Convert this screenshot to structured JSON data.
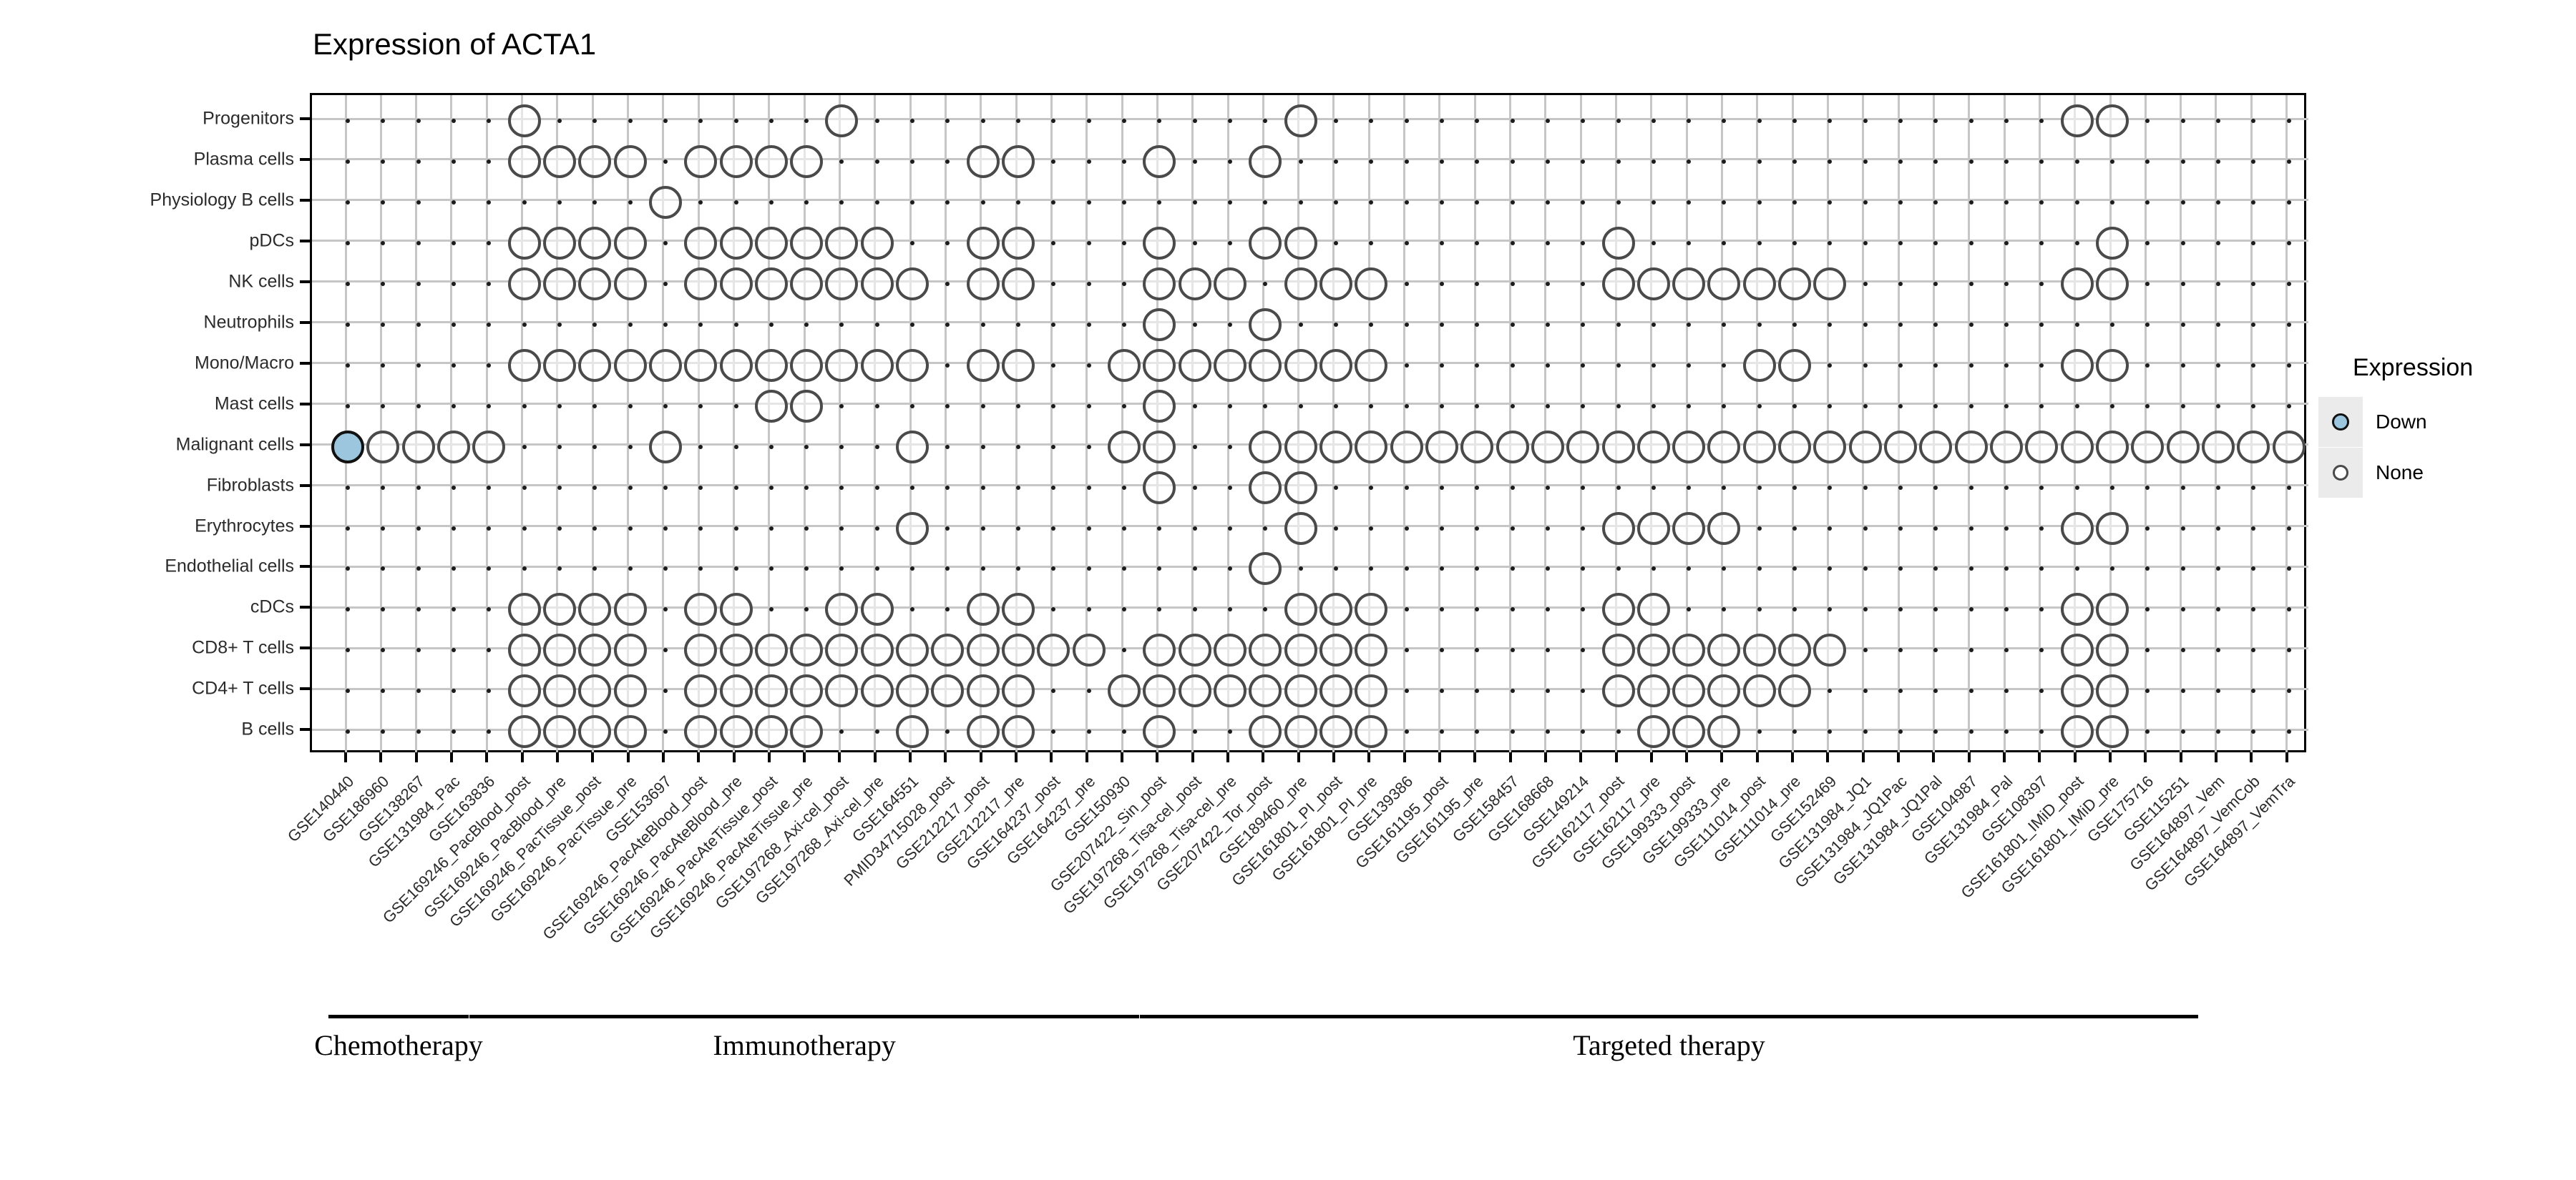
{
  "title": "Expression of ACTA1",
  "legend": {
    "title": "Expression",
    "items": [
      {
        "id": "down",
        "label": "Down"
      },
      {
        "id": "none",
        "label": "None"
      }
    ]
  },
  "groups": [
    {
      "label": "Chemotherapy",
      "from_col": 1,
      "to_col": 4
    },
    {
      "label": "Immunotherapy",
      "from_col": 5,
      "to_col": 23
    },
    {
      "label": "Targeted therapy",
      "from_col": 24,
      "to_col": 53
    }
  ],
  "chart_data": {
    "type": "scatter",
    "title": "Expression of ACTA1",
    "legend": {
      "title": "Expression",
      "entries": [
        "Down",
        "None"
      ],
      "position": "right"
    },
    "grid": true,
    "x_categories": [
      "GSE140440",
      "GSE186960",
      "GSE138267",
      "GSE131984_Pac",
      "GSE163836",
      "GSE169246_PacBlood_post",
      "GSE169246_PacBlood_pre",
      "GSE169246_PacTissue_post",
      "GSE169246_PacTissue_pre",
      "GSE153697",
      "GSE169246_PacAteBlood_post",
      "GSE169246_PacAteBlood_pre",
      "GSE169246_PacAteTissue_post",
      "GSE169246_PacAteTissue_pre",
      "GSE197268_Axi-cel_post",
      "GSE197268_Axi-cel_pre",
      "GSE164551",
      "PMID34715028_post",
      "GSE212217_post",
      "GSE212217_pre",
      "GSE164237_post",
      "GSE164237_pre",
      "GSE150930",
      "GSE207422_Sin_post",
      "GSE197268_Tisa-cel_post",
      "GSE197268_Tisa-cel_pre",
      "GSE207422_Tor_post",
      "GSE189460_pre",
      "GSE161801_PI_post",
      "GSE161801_PI_pre",
      "GSE139386",
      "GSE161195_post",
      "GSE161195_pre",
      "GSE158457",
      "GSE168668",
      "GSE149214",
      "GSE162117_post",
      "GSE162117_pre",
      "GSE199333_post",
      "GSE199333_pre",
      "GSE111014_post",
      "GSE111014_pre",
      "GSE152469",
      "GSE131984_JQ1",
      "GSE131984_JQ1Pac",
      "GSE131984_JQ1Pal",
      "GSE104987",
      "GSE131984_Pal",
      "GSE108397",
      "GSE161801_IMiD_post",
      "GSE161801_IMiD_pre",
      "GSE175716",
      "GSE115251",
      "GSE164897_Vem",
      "GSE164897_VemCob",
      "GSE164897_VemTra"
    ],
    "y_categories": [
      "Progenitors",
      "Plasma cells",
      "Physiology B cells",
      "pDCs",
      "NK cells",
      "Neutrophils",
      "Mono/Macro",
      "Mast cells",
      "Malignant cells",
      "Fibroblasts",
      "Erythrocytes",
      "Endothelial cells",
      "cDCs",
      "CD8+ T cells",
      "CD4+ T cells",
      "B cells"
    ],
    "none_points": {
      "Progenitors": [
        6,
        15,
        28,
        50,
        51
      ],
      "Plasma cells": [
        6,
        7,
        8,
        9,
        11,
        12,
        13,
        14,
        19,
        20,
        24,
        27
      ],
      "Physiology B cells": [
        10
      ],
      "pDCs": [
        6,
        7,
        8,
        9,
        11,
        12,
        13,
        14,
        15,
        16,
        19,
        20,
        24,
        27,
        28,
        37,
        51
      ],
      "NK cells": [
        6,
        7,
        8,
        9,
        11,
        12,
        13,
        14,
        15,
        16,
        17,
        19,
        20,
        24,
        25,
        26,
        28,
        29,
        30,
        37,
        38,
        39,
        40,
        41,
        42,
        43,
        50,
        51
      ],
      "Neutrophils": [
        24,
        27
      ],
      "Mono/Macro": [
        6,
        7,
        8,
        9,
        10,
        11,
        12,
        13,
        14,
        15,
        16,
        17,
        19,
        20,
        23,
        24,
        25,
        26,
        27,
        28,
        29,
        30,
        41,
        42,
        50,
        51
      ],
      "Mast cells": [
        13,
        14,
        24
      ],
      "Malignant cells": [
        2,
        3,
        4,
        5,
        10,
        17,
        23,
        24,
        27,
        28,
        29,
        30,
        31,
        32,
        33,
        34,
        35,
        36,
        37,
        38,
        39,
        40,
        41,
        42,
        43,
        44,
        45,
        46,
        47,
        48,
        49,
        50,
        51,
        52,
        53,
        54,
        55,
        56
      ],
      "Fibroblasts": [
        24,
        27,
        28
      ],
      "Erythrocytes": [
        17,
        28,
        37,
        38,
        39,
        40,
        50,
        51
      ],
      "Endothelial cells": [
        27
      ],
      "cDCs": [
        6,
        7,
        8,
        9,
        11,
        12,
        15,
        16,
        19,
        20,
        28,
        29,
        30,
        37,
        38,
        50,
        51
      ],
      "CD8+ T cells": [
        6,
        7,
        8,
        9,
        11,
        12,
        13,
        14,
        15,
        16,
        17,
        18,
        19,
        20,
        21,
        22,
        24,
        25,
        26,
        27,
        28,
        29,
        30,
        37,
        38,
        39,
        40,
        41,
        42,
        43,
        50,
        51
      ],
      "CD4+ T cells": [
        6,
        7,
        8,
        9,
        11,
        12,
        13,
        14,
        15,
        16,
        17,
        18,
        19,
        20,
        23,
        24,
        25,
        26,
        27,
        28,
        29,
        30,
        37,
        38,
        39,
        40,
        41,
        42,
        50,
        51
      ],
      "B cells": [
        6,
        7,
        8,
        9,
        11,
        12,
        13,
        14,
        17,
        19,
        20,
        24,
        27,
        28,
        29,
        30,
        38,
        39,
        40,
        50,
        51
      ]
    },
    "down_points": [
      {
        "row": "Malignant cells",
        "col": 1
      }
    ],
    "colors": {
      "down_fill": "#9cc6de",
      "down_stroke": "#111111",
      "none_stroke": "#4a4a4a",
      "grid": "#c6c6c6",
      "intersection_dot": "#1c1c1c",
      "panel_border": "#000000"
    }
  }
}
